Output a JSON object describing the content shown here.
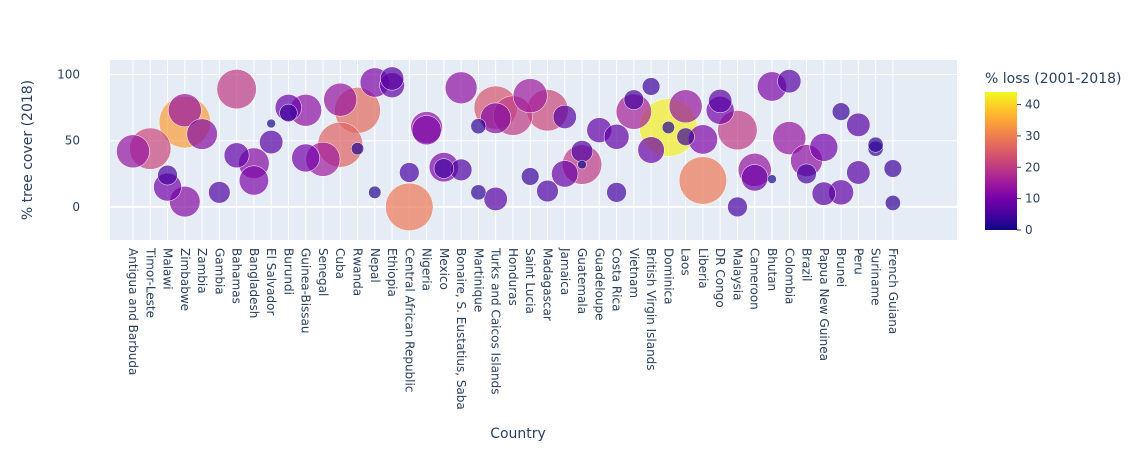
{
  "chart_data": {
    "type": "scatter",
    "xlabel": "Country",
    "ylabel": "% tree cover (2018)",
    "ylim": [
      -25,
      111
    ],
    "yticks": [
      0,
      50,
      100
    ],
    "colorbar": {
      "title": "% loss (2001-2018)",
      "range": [
        0,
        44
      ],
      "ticks": [
        0,
        10,
        20,
        30,
        40
      ]
    },
    "categories": [
      "Antigua and Barbuda",
      "Timor-Leste",
      "Malawi",
      "Zimbabwe",
      "Zambia",
      "Gambia",
      "Bahamas",
      "Bangladesh",
      "El Salvador",
      "Burundi",
      "Guinea-Bissau",
      "Senegal",
      "Cuba",
      "Rwanda",
      "Nepal",
      "Ethiopia",
      "Central African Republic",
      "Nigeria",
      "Mexico",
      "Bonaire, S. Eustatius, Saba",
      "Martinique",
      "Turks and Caicos Islands",
      "Honduras",
      "Saint Lucia",
      "Madagascar",
      "Jamaica",
      "Guatemala",
      "Guadeloupe",
      "Costa Rica",
      "Vietnam",
      "British Virgin Islands",
      "Dominica",
      "Laos",
      "Liberia",
      "DR Congo",
      "Malaysia",
      "Cameroon",
      "Bhutan",
      "Colombia",
      "Brazil",
      "Papua New Guinea",
      "Brunei",
      "Peru",
      "Suriname",
      "French Guiana"
    ],
    "points": [
      {
        "x": "Antigua and Barbuda",
        "y": 42,
        "loss": 14
      },
      {
        "x": "Timor-Leste",
        "y": 44,
        "loss": 22
      },
      {
        "x": "Malawi",
        "y": 24,
        "loss": 5
      },
      {
        "x": "Malawi",
        "y": 15,
        "loss": 10
      },
      {
        "x": "Zimbabwe",
        "y": 73,
        "loss": 14
      },
      {
        "x": "Zimbabwe",
        "y": 4,
        "loss": 12
      },
      {
        "x": "Zimbabwe",
        "y": 64,
        "loss": 34
      },
      {
        "x": "Zambia",
        "y": 55,
        "loss": 12
      },
      {
        "x": "Gambia",
        "y": 11,
        "loss": 6
      },
      {
        "x": "Bahamas",
        "y": 39,
        "loss": 8
      },
      {
        "x": "Bahamas",
        "y": 89,
        "loss": 20
      },
      {
        "x": "Bangladesh",
        "y": 20,
        "loss": 11
      },
      {
        "x": "Bangladesh",
        "y": 33,
        "loss": 12
      },
      {
        "x": "El Salvador",
        "y": 63,
        "loss": 1
      },
      {
        "x": "El Salvador",
        "y": 49,
        "loss": 7
      },
      {
        "x": "Burundi",
        "y": 75,
        "loss": 9
      },
      {
        "x": "Burundi",
        "y": 71,
        "loss": 4
      },
      {
        "x": "Guinea-Bissau",
        "y": 73,
        "loss": 13
      },
      {
        "x": "Guinea-Bissau",
        "y": 37,
        "loss": 10
      },
      {
        "x": "Senegal",
        "y": 36,
        "loss": 15
      },
      {
        "x": "Cuba",
        "y": 47,
        "loss": 26
      },
      {
        "x": "Cuba",
        "y": 81,
        "loss": 14
      },
      {
        "x": "Rwanda",
        "y": 73,
        "loss": 27
      },
      {
        "x": "Rwanda",
        "y": 44,
        "loss": 2
      },
      {
        "x": "Nepal",
        "y": 94,
        "loss": 11
      },
      {
        "x": "Nepal",
        "y": 11,
        "loss": 2
      },
      {
        "x": "Ethiopia",
        "y": 97,
        "loss": 7
      },
      {
        "x": "Ethiopia",
        "y": 92,
        "loss": 8
      },
      {
        "x": "Central African Republic",
        "y": 26,
        "loss": 5
      },
      {
        "x": "Central African Republic",
        "y": 0,
        "loss": 29
      },
      {
        "x": "Nigeria",
        "y": 60,
        "loss": 13
      },
      {
        "x": "Nigeria",
        "y": 58,
        "loss": 11
      },
      {
        "x": "Mexico",
        "y": 29,
        "loss": 5
      },
      {
        "x": "Mexico",
        "y": 30,
        "loss": 11
      },
      {
        "x": "Bonaire, S. Eustatius, Saba",
        "y": 90,
        "loss": 13
      },
      {
        "x": "Bonaire, S. Eustatius, Saba",
        "y": 28,
        "loss": 6
      },
      {
        "x": "Martinique",
        "y": 61,
        "loss": 3
      },
      {
        "x": "Martinique",
        "y": 11,
        "loss": 3
      },
      {
        "x": "Turks and Caicos Islands",
        "y": 75,
        "loss": 24
      },
      {
        "x": "Turks and Caicos Islands",
        "y": 67,
        "loss": 12
      },
      {
        "x": "Turks and Caicos Islands",
        "y": 6,
        "loss": 7
      },
      {
        "x": "Honduras",
        "y": 69,
        "loss": 20
      },
      {
        "x": "Saint Lucia",
        "y": 84,
        "loss": 15
      },
      {
        "x": "Saint Lucia",
        "y": 23,
        "loss": 4
      },
      {
        "x": "Madagascar",
        "y": 12,
        "loss": 6
      },
      {
        "x": "Madagascar",
        "y": 73,
        "loss": 22
      },
      {
        "x": "Jamaica",
        "y": 68,
        "loss": 7
      },
      {
        "x": "Jamaica",
        "y": 25,
        "loss": 9
      },
      {
        "x": "Guatemala",
        "y": 42,
        "loss": 6
      },
      {
        "x": "Guatemala",
        "y": 32,
        "loss": 20
      },
      {
        "x": "Guatemala",
        "y": 32,
        "loss": 1
      },
      {
        "x": "Guadeloupe",
        "y": 58,
        "loss": 8
      },
      {
        "x": "Costa Rica",
        "y": 53,
        "loss": 8
      },
      {
        "x": "Costa Rica",
        "y": 11,
        "loss": 5
      },
      {
        "x": "Vietnam",
        "y": 81,
        "loss": 5
      },
      {
        "x": "Vietnam",
        "y": 72,
        "loss": 16
      },
      {
        "x": "British Virgin Islands",
        "y": 91,
        "loss": 4
      },
      {
        "x": "British Virgin Islands",
        "y": 43,
        "loss": 9
      },
      {
        "x": "Dominica",
        "y": 60,
        "loss": 43
      },
      {
        "x": "Dominica",
        "y": 60,
        "loss": 2
      },
      {
        "x": "Laos",
        "y": 53,
        "loss": 4
      },
      {
        "x": "Laos",
        "y": 76,
        "loss": 14
      },
      {
        "x": "Liberia",
        "y": 20,
        "loss": 29
      },
      {
        "x": "Liberia",
        "y": 51,
        "loss": 11
      },
      {
        "x": "DR Congo",
        "y": 80,
        "loss": 7
      },
      {
        "x": "DR Congo",
        "y": 73,
        "loss": 10
      },
      {
        "x": "Malaysia",
        "y": 0,
        "loss": 5
      },
      {
        "x": "Malaysia",
        "y": 58,
        "loss": 20
      },
      {
        "x": "Cameroon",
        "y": 28,
        "loss": 14
      },
      {
        "x": "Cameroon",
        "y": 22,
        "loss": 9
      },
      {
        "x": "Bhutan",
        "y": 21,
        "loss": 1
      },
      {
        "x": "Bhutan",
        "y": 91,
        "loss": 11
      },
      {
        "x": "Colombia",
        "y": 52,
        "loss": 14
      },
      {
        "x": "Colombia",
        "y": 95,
        "loss": 7
      },
      {
        "x": "Brazil",
        "y": 25,
        "loss": 5
      },
      {
        "x": "Brazil",
        "y": 35,
        "loss": 13
      },
      {
        "x": "Papua New Guinea",
        "y": 45,
        "loss": 10
      },
      {
        "x": "Papua New Guinea",
        "y": 10,
        "loss": 7
      },
      {
        "x": "Brunei",
        "y": 72,
        "loss": 4
      },
      {
        "x": "Brunei",
        "y": 11,
        "loss": 8
      },
      {
        "x": "Peru",
        "y": 26,
        "loss": 7
      },
      {
        "x": "Peru",
        "y": 62,
        "loss": 7
      },
      {
        "x": "Suriname",
        "y": 44,
        "loss": 3
      },
      {
        "x": "Suriname",
        "y": 47,
        "loss": 3
      },
      {
        "x": "French Guiana",
        "y": 29,
        "loss": 4
      },
      {
        "x": "French Guiana",
        "y": 3,
        "loss": 3
      }
    ]
  }
}
